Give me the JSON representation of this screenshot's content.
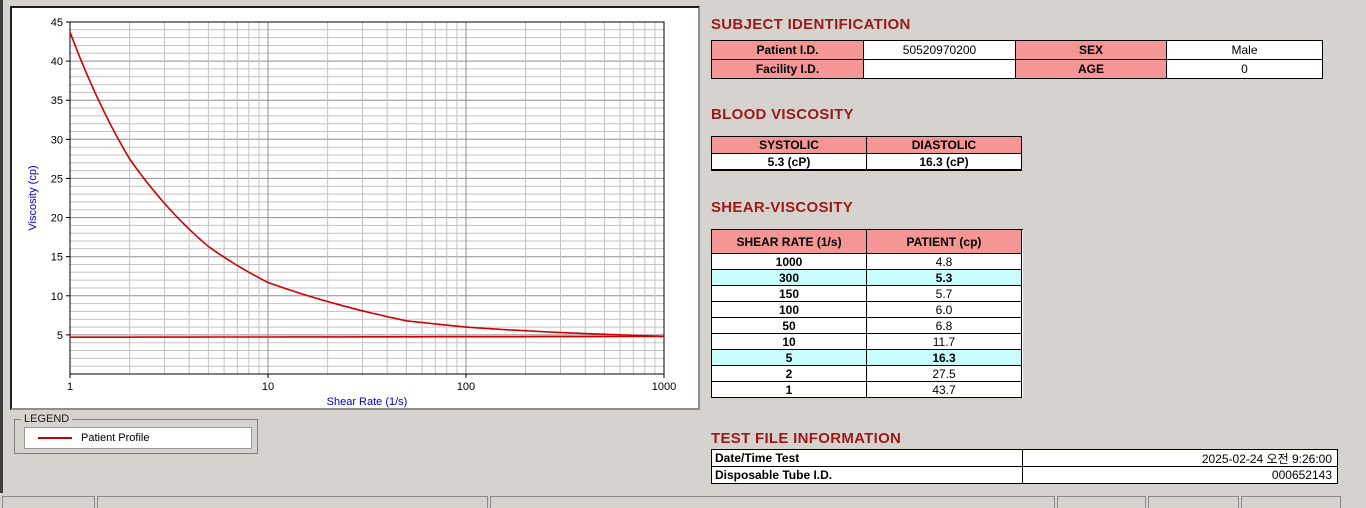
{
  "window": {
    "background": "#d6d3ce"
  },
  "chart_data": {
    "type": "line",
    "title": "",
    "xlabel": "Shear Rate (1/s)",
    "ylabel": "Viscosity (cp)",
    "axis_label_color": "#0000cc",
    "x_scale": "log10",
    "xlim": [
      1,
      1000
    ],
    "ylim": [
      0,
      45
    ],
    "x_ticks": [
      1,
      10,
      100,
      1000
    ],
    "y_ticks": [
      5,
      10,
      15,
      20,
      25,
      30,
      35,
      40,
      45
    ],
    "grid": "major and minor gridlines on, log-x minor decades, y minor every 1",
    "legend_position": "below-left",
    "series": [
      {
        "name": "Patient Profile",
        "color": "#cc0000",
        "x": [
          1,
          2,
          5,
          10,
          50,
          100,
          150,
          300,
          1000
        ],
        "y": [
          43.7,
          27.5,
          16.3,
          11.7,
          6.8,
          6.0,
          5.7,
          5.3,
          4.8
        ]
      },
      {
        "name": "Patient Profile asymptote",
        "color": "#cc0000",
        "x": [
          1,
          1000
        ],
        "y": [
          4.7,
          4.8
        ]
      }
    ]
  },
  "legend": {
    "label": "LEGEND",
    "entries": [
      {
        "name": "Patient Profile",
        "color": "#cc0000"
      }
    ]
  },
  "subject": {
    "title": "SUBJECT IDENTIFICATION",
    "rows": [
      {
        "label1": "Patient I.D.",
        "value1": "50520970200",
        "label2": "SEX",
        "value2": "Male"
      },
      {
        "label1": "Facility I.D.",
        "value1": "",
        "label2": "AGE",
        "value2": "0"
      }
    ]
  },
  "blood": {
    "title": "BLOOD VISCOSITY",
    "headers": [
      "SYSTOLIC",
      "DIASTOLIC"
    ],
    "values": [
      "5.3 (cP)",
      "16.3 (cP)"
    ]
  },
  "shear": {
    "title": "SHEAR-VISCOSITY",
    "headers": [
      "SHEAR RATE (1/s)",
      "PATIENT (cp)"
    ],
    "rows": [
      {
        "rate": "1000",
        "value": "4.8"
      },
      {
        "rate": "300",
        "value": "5.3"
      },
      {
        "rate": "150",
        "value": "5.7"
      },
      {
        "rate": "100",
        "value": "6.0"
      },
      {
        "rate": "50",
        "value": "6.8"
      },
      {
        "rate": "10",
        "value": "11.7"
      },
      {
        "rate": "5",
        "value": "16.3"
      },
      {
        "rate": "2",
        "value": "27.5"
      },
      {
        "rate": "1",
        "value": "43.7"
      }
    ],
    "highlighted_rates": [
      "300",
      "5"
    ]
  },
  "testfile": {
    "title": "TEST FILE INFORMATION",
    "rows": [
      {
        "label": "Date/Time Test",
        "value": "2025-02-24  오전 9:26:00"
      },
      {
        "label": "Disposable Tube I.D.",
        "value": "000652143"
      }
    ]
  },
  "colors": {
    "section_title": "#9b1919",
    "table_header_pink": "#f59696",
    "row_highlight_cyan": "#c9feff",
    "curve_red": "#cc0000"
  }
}
